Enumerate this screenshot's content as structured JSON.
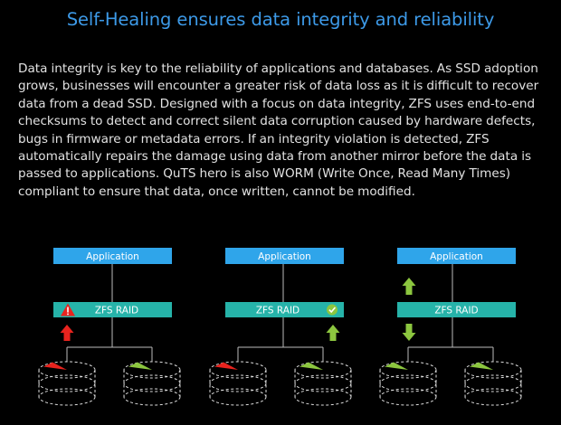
{
  "title": "Self-Healing ensures data integrity and reliability",
  "description": "Data integrity is key to the reliability of applications and databases. As SSD adoption grows, businesses will encounter a greater risk of data loss as it is difficult to recover data from a dead SSD. Designed with a focus on data integrity, ZFS uses end-to-end checksums to detect and correct silent data corruption caused by hardware defects, bugs in firmware or metadata errors. If an integrity violation is detected, ZFS automatically repairs the damage using data from another mirror before the data is passed to applications. QuTS hero is also WORM (Write Once, Read Many Times) compliant to ensure that data, once written, cannot be modified.",
  "diagrams": [
    {
      "app_label": "Application",
      "raid_label": "ZFS RAID",
      "status_icon": "warning-icon",
      "arrow": "up",
      "arrow_color": "#e8231e",
      "disks": [
        "corrupted",
        "healthy"
      ]
    },
    {
      "app_label": "Application",
      "raid_label": "ZFS RAID",
      "status_icon": "check-icon",
      "arrow": "up",
      "arrow_color": "#8cc63f",
      "disks": [
        "corrupted",
        "healthy"
      ]
    },
    {
      "app_label": "Application",
      "raid_label": "ZFS RAID",
      "status_icon": "none",
      "arrow": "both",
      "arrow_color": "#8cc63f",
      "disks": [
        "healthy",
        "healthy"
      ]
    }
  ],
  "colors": {
    "application": "#2fa5ea",
    "raid": "#26b3a9",
    "corrupted": "#e8231e",
    "healthy": "#8cc63f",
    "warning": "#e8231e",
    "check": "#8cc63f"
  }
}
